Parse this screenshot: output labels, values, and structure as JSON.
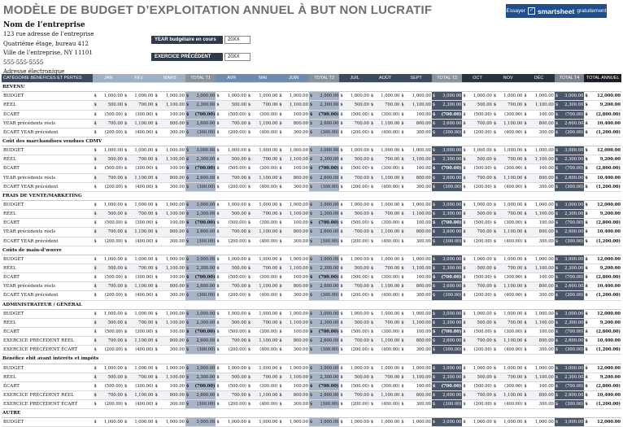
{
  "page": {
    "title": "MODÈLE DE BUDGET D’EXPLOITATION ANNUEL À BUT NON LUCRATIF",
    "banner": {
      "prefix": "Essayer",
      "brand": "smartsheet",
      "suffix": "gratuitement"
    }
  },
  "org": {
    "name": "Nom de l’entreprise",
    "address1": "123 rue adresse de l’entreprise",
    "address2": "Quatrième étage, bureau 412",
    "city": "Ville de l’entreprise, NY 11101",
    "phone": "555-555-5555",
    "email": "Adresse électronique"
  },
  "fiscal": {
    "year_label": "YEAR budgétaire en cours",
    "year_value": "20XX",
    "prev_label": "EXERCICE PRÉCÉDENT",
    "prev_value": "20XX"
  },
  "columns": [
    "CATÉGORIE BÉNÉFICES ET PERTES",
    "JAN",
    "FÉV",
    "MARS",
    "TOTAL T1",
    "AVR",
    "MAI",
    "JUIN",
    "TOTAL T2",
    "JUIL",
    "AOÛT",
    "SEPT",
    "TOTAL T3",
    "OCT",
    "NOV",
    "DÉC",
    "TOTAL T4",
    "TOTAL ANNUEL"
  ],
  "currency": "$",
  "sections": [
    {
      "title": "REVENU",
      "rows": [
        "BUDGET",
        "RÉEL",
        "ÉCART",
        "YEAR précédents réels",
        "ÉCART YEAR précédent"
      ]
    },
    {
      "title": "Coût des marchandises vendues CDMV",
      "rows": [
        "BUDGET",
        "RÉEL",
        "ÉCART",
        "YEAR précédents réels",
        "ÉCART YEAR précédent"
      ]
    },
    {
      "title": "FRAIS DE VENTE/MARKETING",
      "rows": [
        "BUDGET",
        "RÉEL",
        "ÉCART",
        "YEAR précédents réels",
        "ÉCART YEAR précédent"
      ]
    },
    {
      "title": "Coûts de main-d’œuvre",
      "rows": [
        "BUDGET",
        "RÉEL",
        "ÉCART",
        "YEAR précédents réels",
        "ÉCART YEAR précédent"
      ]
    },
    {
      "title": "ADMINISTRATEUR / GÉNÉRAL",
      "rows": [
        "BUDGET",
        "RÉEL",
        "ÉCART",
        "EXERCICE PRÉCÉDENT RÉEL",
        "EXERCICE PRÉCÉDENT ÉCART"
      ]
    },
    {
      "title": "Bénéfice ebit avant intérêts et impôts",
      "rows": [
        "BUDGET",
        "RÉEL",
        "ÉCART",
        "EXERCICE PRÉCÉDENT RÉEL",
        "EXERCICE PRÉCÉDENT ÉCART"
      ]
    },
    {
      "title": "AUTRE",
      "rows": [
        "BUDGET"
      ]
    }
  ],
  "row_values": {
    "budget": [
      "1,000.00",
      "1,000.00",
      "1,000.00",
      "3,000.00",
      "1,000.00",
      "1,000.00",
      "1,000.00",
      "3,000.00",
      "1,000.00",
      "1,000.00",
      "1,000.00",
      "3,000.00",
      "1,000.00",
      "1,000.00",
      "1,000.00",
      "3,000.00",
      "12,000.00"
    ],
    "reel": [
      "500.00",
      "700.00",
      "1,100.00",
      "2,300.00",
      "500.00",
      "700.00",
      "1,100.00",
      "2,300.00",
      "500.00",
      "700.00",
      "1,100.00",
      "2,300.00",
      "500.00",
      "700.00",
      "1,100.00",
      "2,300.00",
      "9,200.00"
    ],
    "ecart": [
      "(500.00)",
      "(300.00)",
      "100.00",
      "(700.00)",
      "(500.00)",
      "(300.00)",
      "100.00",
      "(700.00)",
      "(500.00)",
      "(300.00)",
      "100.00",
      "(700.00)",
      "(500.00)",
      "(300.00)",
      "100.00",
      "(700.00)",
      "(2,800.00)"
    ],
    "prev": [
      "700.00",
      "1,100.00",
      "800.00",
      "2,600.00",
      "700.00",
      "1,100.00",
      "800.00",
      "2,600.00",
      "700.00",
      "1,100.00",
      "800.00",
      "2,600.00",
      "700.00",
      "1,100.00",
      "800.00",
      "2,600.00",
      "10,400.00"
    ],
    "pecart": [
      "(200.00)",
      "(400.00)",
      "300.00",
      "(300.00)",
      "(200.00)",
      "(400.00)",
      "300.00",
      "(300.00)",
      "(200.00)",
      "(400.00)",
      "300.00",
      "(300.00)",
      "(200.00)",
      "(400.00)",
      "300.00",
      "(300.00)",
      "(1,200.00)"
    ]
  }
}
